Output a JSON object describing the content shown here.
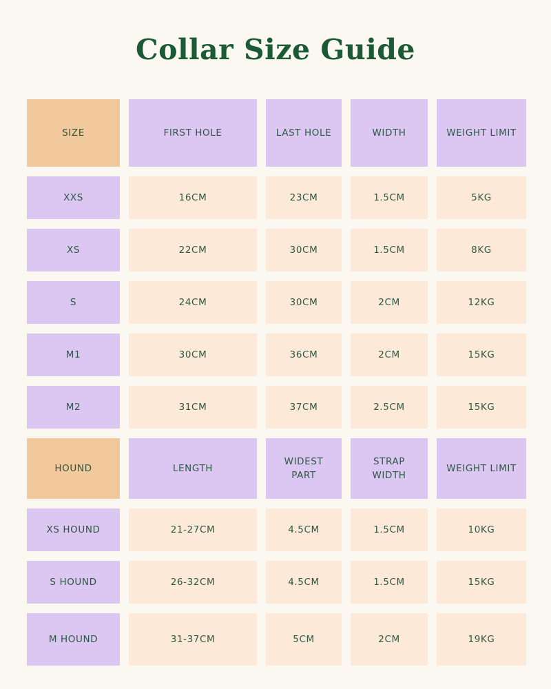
{
  "page": {
    "title": "Collar Size Guide",
    "colors": {
      "background": "#FAF8F1",
      "header_orange": "#F2C89D",
      "header_purple": "#DBC7F1",
      "cell_peach": "#FCE9D8",
      "title_green": "#1B5A35",
      "text_green": "#2E5843"
    }
  },
  "table": {
    "header_row": {
      "size": "SIZE",
      "cols": [
        "FIRST HOLE",
        "LAST HOLE",
        "WIDTH",
        "WEIGHT LIMIT"
      ]
    },
    "rows": [
      {
        "size": "XXS",
        "c": [
          "16CM",
          "23CM",
          "1.5CM",
          "5KG"
        ]
      },
      {
        "size": "XS",
        "c": [
          "22CM",
          "30CM",
          "1.5CM",
          "8KG"
        ]
      },
      {
        "size": "S",
        "c": [
          "24CM",
          "30CM",
          "2CM",
          "12KG"
        ]
      },
      {
        "size": "M1",
        "c": [
          "30CM",
          "36CM",
          "2CM",
          "15KG"
        ]
      },
      {
        "size": "M2",
        "c": [
          "31CM",
          "37CM",
          "2.5CM",
          "15KG"
        ]
      }
    ],
    "hound_header_row": {
      "size": "HOUND",
      "cols": [
        "LENGTH",
        "WIDEST\nPART",
        "STRAP\nWIDTH",
        "WEIGHT LIMIT"
      ]
    },
    "hound_rows": [
      {
        "size": "XS HOUND",
        "c": [
          "21-27CM",
          "4.5CM",
          "1.5CM",
          "10KG"
        ]
      },
      {
        "size": "S HOUND",
        "c": [
          "26-32CM",
          "4.5CM",
          "1.5CM",
          "15KG"
        ]
      },
      {
        "size": "M HOUND",
        "c": [
          "31-37CM",
          "5CM",
          "2CM",
          "19KG"
        ]
      }
    ]
  }
}
